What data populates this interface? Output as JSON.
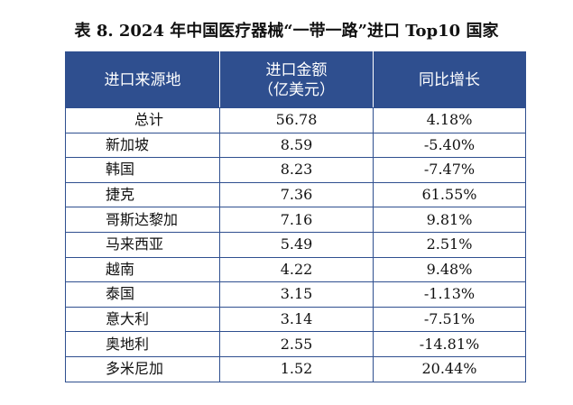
{
  "title": "表 8. 2024 年中国医疗器械“一带一路”进口 Top10 国家",
  "headers": {
    "source": "进口来源地",
    "amount_line1": "进口金额",
    "amount_line2": "（亿美元）",
    "growth": "同比增长"
  },
  "rows": [
    {
      "name": "总计",
      "amount": "56.78",
      "growth": "4.18%"
    },
    {
      "name": "新加坡",
      "amount": "8.59",
      "growth": "-5.40%"
    },
    {
      "name": "韩国",
      "amount": "8.23",
      "growth": "-7.47%"
    },
    {
      "name": "捷克",
      "amount": "7.36",
      "growth": "61.55%"
    },
    {
      "name": "哥斯达黎加",
      "amount": "7.16",
      "growth": "9.81%"
    },
    {
      "name": "马来西亚",
      "amount": "5.49",
      "growth": "2.51%"
    },
    {
      "name": "越南",
      "amount": "4.22",
      "growth": "9.48%"
    },
    {
      "name": "泰国",
      "amount": "3.15",
      "growth": "-1.13%"
    },
    {
      "name": "意大利",
      "amount": "3.14",
      "growth": "-7.51%"
    },
    {
      "name": "奥地利",
      "amount": "2.55",
      "growth": "-14.81%"
    },
    {
      "name": "多米尼加",
      "amount": "1.52",
      "growth": "20.44%"
    }
  ],
  "colors": {
    "header_bg": "#2f4f8f",
    "header_text": "#ffffff",
    "border": "#2f4f8f"
  }
}
